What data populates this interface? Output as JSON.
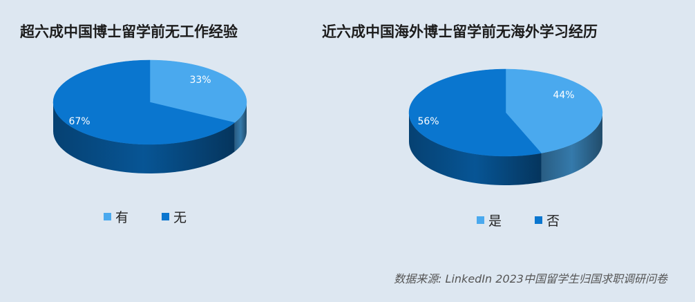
{
  "chart_data": [
    {
      "type": "pie",
      "title": "超六成中国博士留学前无工作经验",
      "categories": [
        "有",
        "无"
      ],
      "values": [
        33,
        67
      ],
      "labels": [
        "33%",
        "67%"
      ],
      "colors": [
        "#4aa9ee",
        "#0a76cf"
      ],
      "legend_position": "bottom"
    },
    {
      "type": "pie",
      "title": "近六成中国海外博士留学前无海外学习经历",
      "categories": [
        "是",
        "否"
      ],
      "values": [
        44,
        56
      ],
      "labels": [
        "44%",
        "56%"
      ],
      "colors": [
        "#4aa9ee",
        "#0a76cf"
      ],
      "legend_position": "bottom"
    }
  ],
  "source": "数据来源:   LinkedIn 2023中国留学生归国求职调研问卷"
}
